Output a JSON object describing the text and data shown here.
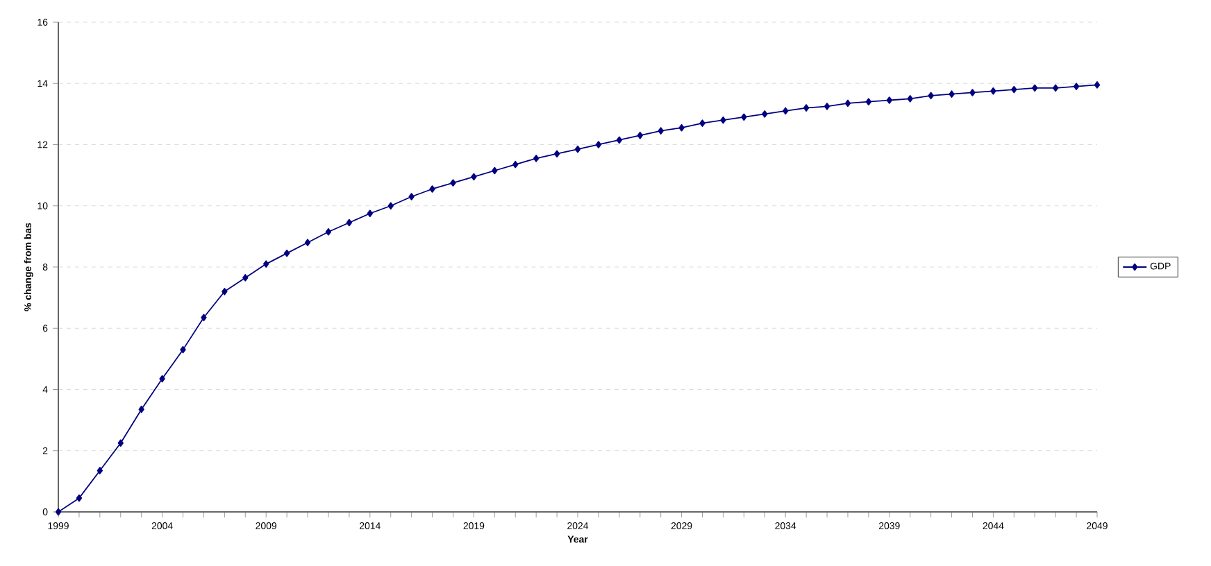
{
  "chart_data": {
    "type": "line",
    "xlabel": "Year",
    "ylabel": "% change from bas",
    "x": [
      1999,
      2000,
      2001,
      2002,
      2003,
      2004,
      2005,
      2006,
      2007,
      2008,
      2009,
      2010,
      2011,
      2012,
      2013,
      2014,
      2015,
      2016,
      2017,
      2018,
      2019,
      2020,
      2021,
      2022,
      2023,
      2024,
      2025,
      2026,
      2027,
      2028,
      2029,
      2030,
      2031,
      2032,
      2033,
      2034,
      2035,
      2036,
      2037,
      2038,
      2039,
      2040,
      2041,
      2042,
      2043,
      2044,
      2045,
      2046,
      2047,
      2048,
      2049
    ],
    "series": [
      {
        "name": "GDP",
        "color": "#000080",
        "values": [
          0,
          0.45,
          1.35,
          2.25,
          3.35,
          4.35,
          5.3,
          6.35,
          7.2,
          7.65,
          8.1,
          8.45,
          8.8,
          9.15,
          9.45,
          9.75,
          10.0,
          10.3,
          10.55,
          10.75,
          10.95,
          11.15,
          11.35,
          11.55,
          11.7,
          11.85,
          12.0,
          12.15,
          12.3,
          12.45,
          12.55,
          12.7,
          12.8,
          12.9,
          13.0,
          13.1,
          13.2,
          13.25,
          13.35,
          13.4,
          13.45,
          13.5,
          13.6,
          13.65,
          13.7,
          13.75,
          13.8,
          13.85,
          13.85,
          13.9,
          13.95
        ]
      }
    ],
    "xlim": [
      1999,
      2049
    ],
    "ylim": [
      0,
      16
    ],
    "xticks": [
      1999,
      {
        "value": 2000,
        "label": null
      },
      {
        "value": 2001,
        "label": null
      },
      {
        "value": 2002,
        "label": null
      },
      {
        "value": 2003,
        "label": null
      },
      2004,
      {
        "value": 2005,
        "label": null
      },
      {
        "value": 2006,
        "label": null
      },
      {
        "value": 2007,
        "label": null
      },
      {
        "value": 2008,
        "label": null
      },
      2009,
      {
        "value": 2010,
        "label": null
      },
      {
        "value": 2011,
        "label": null
      },
      {
        "value": 2012,
        "label": null
      },
      {
        "value": 2013,
        "label": null
      },
      2014,
      {
        "value": 2015,
        "label": null
      },
      {
        "value": 2016,
        "label": null
      },
      {
        "value": 2017,
        "label": null
      },
      {
        "value": 2018,
        "label": null
      },
      2019,
      {
        "value": 2020,
        "label": null
      },
      {
        "value": 2021,
        "label": null
      },
      {
        "value": 2022,
        "label": null
      },
      {
        "value": 2023,
        "label": null
      },
      2024,
      {
        "value": 2025,
        "label": null
      },
      {
        "value": 2026,
        "label": null
      },
      {
        "value": 2027,
        "label": null
      },
      {
        "value": 2028,
        "label": null
      },
      2029,
      {
        "value": 2030,
        "label": null
      },
      {
        "value": 2031,
        "label": null
      },
      {
        "value": 2032,
        "label": null
      },
      {
        "value": 2033,
        "label": null
      },
      2034,
      {
        "value": 2035,
        "label": null
      },
      {
        "value": 2036,
        "label": null
      },
      {
        "value": 2037,
        "label": null
      },
      {
        "value": 2038,
        "label": null
      },
      2039,
      {
        "value": 2040,
        "label": null
      },
      {
        "value": 2041,
        "label": null
      },
      {
        "value": 2042,
        "label": null
      },
      {
        "value": 2043,
        "label": null
      },
      2044,
      {
        "value": 2045,
        "label": null
      },
      {
        "value": 2046,
        "label": null
      },
      {
        "value": 2047,
        "label": null
      },
      {
        "value": 2048,
        "label": null
      },
      2049
    ],
    "yticks": [
      0,
      2,
      4,
      6,
      8,
      10,
      12,
      14,
      16
    ],
    "grid": "y",
    "legend": "right",
    "marker": "diamond",
    "line_style": "solid"
  }
}
